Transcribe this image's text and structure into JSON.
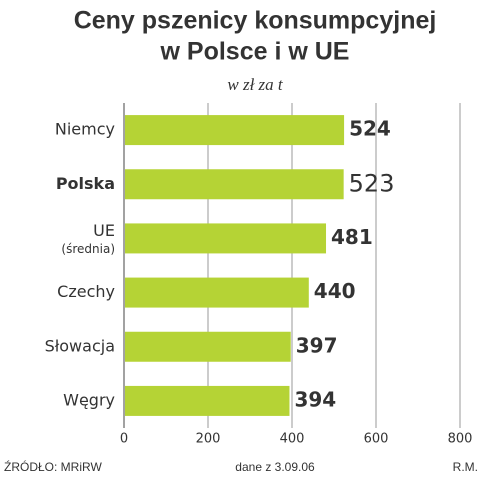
{
  "chart_data": {
    "type": "bar",
    "orientation": "horizontal",
    "title": [
      "Ceny pszenicy konsumpcyjnej",
      "w Polsce i w UE"
    ],
    "subtitle": "w zł za t",
    "categories": [
      "Niemcy",
      "Polska",
      "UE",
      "Czechy",
      "Słowacja",
      "Węgry"
    ],
    "category_notes": [
      null,
      null,
      "(średnia)",
      null,
      null,
      null
    ],
    "values": [
      524,
      523,
      481,
      440,
      397,
      394
    ],
    "color": "#b5d335",
    "xlim": [
      0,
      800
    ],
    "xticks": [
      0,
      200,
      400,
      600,
      800
    ],
    "grid": true,
    "source": "ŹRÓDŁO: MRiRW",
    "note": "dane z 3.09.06",
    "author": "R.M."
  }
}
